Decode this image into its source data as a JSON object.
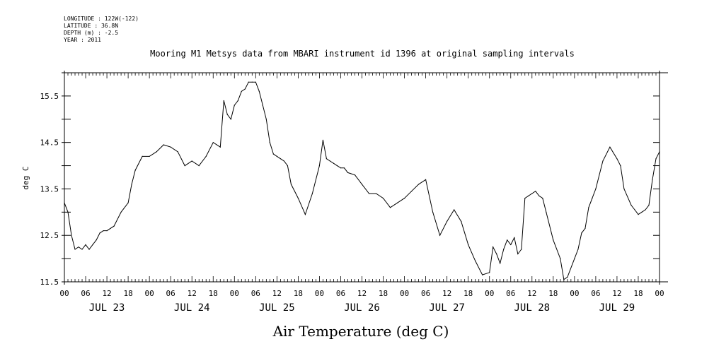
{
  "header": {
    "longitude": "LONGITUDE : 122W(-122)",
    "latitude": "LATITUDE : 36.8N",
    "depth": "DEPTH (m) : -2.5",
    "year": "YEAR : 2011"
  },
  "chart_data": {
    "type": "line",
    "title": "Mooring M1 Metsys data from MBARI instrument id 1396 at original sampling intervals",
    "xlabel": "Air Temperature (deg C)",
    "ylabel": "deg C",
    "ylim": [
      11.5,
      16.0
    ],
    "xlim": [
      0,
      168
    ],
    "yticks": [
      "11.5",
      "12.5",
      "13.5",
      "14.5",
      "15.5"
    ],
    "xhour_ticks": [
      "00",
      "06",
      "12",
      "18",
      "00",
      "06",
      "12",
      "18",
      "00",
      "06",
      "12",
      "18",
      "00",
      "06",
      "12",
      "18",
      "00",
      "06",
      "12",
      "18",
      "00",
      "06",
      "12",
      "18",
      "00",
      "06",
      "12",
      "18",
      "00"
    ],
    "days": [
      "JUL 23",
      "JUL 24",
      "JUL 25",
      "JUL 26",
      "JUL 27",
      "JUL 28",
      "JUL 29"
    ],
    "grid": false,
    "series": [
      {
        "x_hours": [
          0,
          1,
          2,
          3,
          4,
          5,
          6,
          7,
          8,
          9,
          10,
          11,
          12,
          14,
          16,
          18,
          19,
          20,
          22,
          24,
          26,
          28,
          30,
          32,
          34,
          36,
          38,
          40,
          42,
          44,
          45,
          46,
          47,
          48,
          49,
          50,
          51,
          52,
          53,
          54,
          55,
          56,
          57,
          58,
          59,
          60,
          61,
          62,
          63,
          64,
          66,
          68,
          70,
          72,
          73,
          74,
          75,
          76,
          77,
          78,
          79,
          80,
          82,
          84,
          86,
          88,
          90,
          92,
          94,
          96,
          98,
          100,
          102,
          104,
          106,
          108,
          110,
          112,
          114,
          116,
          118,
          120,
          121,
          122,
          123,
          124,
          125,
          126,
          127,
          128,
          129,
          130,
          131,
          132,
          133,
          134,
          135,
          136,
          138,
          140,
          141,
          142,
          144,
          145,
          146,
          147,
          148,
          149,
          150,
          152,
          154,
          156,
          157,
          158,
          160,
          161,
          162,
          163,
          164,
          165,
          166,
          167,
          168
        ],
        "y": [
          13.2,
          13.0,
          12.5,
          12.2,
          12.25,
          12.2,
          12.3,
          12.2,
          12.3,
          12.4,
          12.55,
          12.6,
          12.6,
          12.7,
          13.0,
          13.2,
          13.6,
          13.9,
          14.2,
          14.2,
          14.3,
          14.45,
          14.4,
          14.3,
          14.0,
          14.1,
          14.0,
          14.2,
          14.5,
          14.4,
          15.4,
          15.1,
          15.0,
          15.3,
          15.4,
          15.6,
          15.65,
          15.8,
          15.8,
          15.8,
          15.6,
          15.3,
          15.0,
          14.5,
          14.25,
          14.2,
          14.15,
          14.1,
          14.0,
          13.6,
          13.3,
          12.95,
          13.4,
          14.0,
          14.55,
          14.15,
          14.1,
          14.05,
          14.0,
          13.95,
          13.95,
          13.85,
          13.8,
          13.6,
          13.4,
          13.4,
          13.3,
          13.1,
          13.2,
          13.3,
          13.45,
          13.6,
          13.7,
          13.0,
          12.5,
          12.8,
          13.05,
          12.8,
          12.3,
          11.95,
          11.65,
          11.7,
          12.25,
          12.1,
          11.9,
          12.2,
          12.4,
          12.3,
          12.45,
          12.1,
          12.2,
          13.3,
          13.35,
          13.4,
          13.45,
          13.35,
          13.3,
          13.0,
          12.4,
          12.0,
          11.55,
          11.6,
          12.0,
          12.2,
          12.55,
          12.65,
          13.1,
          13.3,
          13.5,
          14.1,
          14.4,
          14.15,
          14.0,
          13.5,
          13.15,
          13.05,
          12.95,
          13.0,
          13.05,
          13.15,
          13.7,
          14.15,
          14.3
        ]
      }
    ]
  }
}
